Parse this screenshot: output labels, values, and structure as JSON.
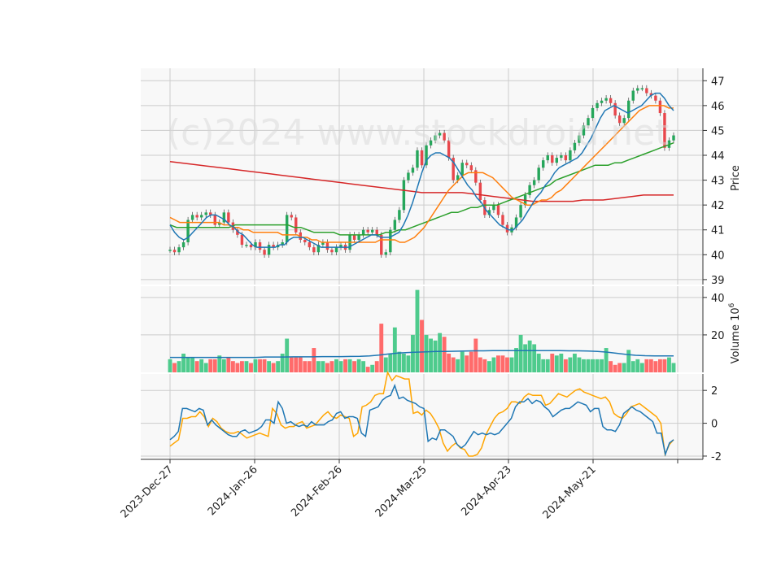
{
  "chart_data": {
    "type": "candlestick",
    "watermark": "(c)2024 www.stockdroid.net",
    "x_tick_labels": [
      "2023-Dec-27",
      "2024-Jan-26",
      "2024-Feb-26",
      "2024-Mar-25",
      "2024-Apr-23",
      "2024-May-21"
    ],
    "colors": {
      "up": "#26a65b",
      "down": "#e8474c",
      "up_volume": "#4ecb8d",
      "down_volume": "#ff6b6b",
      "grid": "#cccccc",
      "panel_bg": "#f8f8f8"
    },
    "price_panel": {
      "ylabel": "Price",
      "ylim": [
        38.8,
        47.5
      ],
      "yticks": [
        39,
        40,
        41,
        42,
        43,
        44,
        45,
        46,
        47
      ],
      "close": [
        40.2,
        40.1,
        40.3,
        40.5,
        41.4,
        41.6,
        41.5,
        41.6,
        41.7,
        41.6,
        41.2,
        41.3,
        41.7,
        41.3,
        41.0,
        40.8,
        40.4,
        40.4,
        40.3,
        40.5,
        40.2,
        40.0,
        40.4,
        40.3,
        40.4,
        40.5,
        41.6,
        41.5,
        40.9,
        40.6,
        40.5,
        40.3,
        40.1,
        40.4,
        40.5,
        40.2,
        40.1,
        40.3,
        40.4,
        40.2,
        40.8,
        40.6,
        40.8,
        41.0,
        40.9,
        41.0,
        40.8,
        40.0,
        40.1,
        41.0,
        41.4,
        41.8,
        43.0,
        43.3,
        43.5,
        44.2,
        43.6,
        44.4,
        44.6,
        44.8,
        44.9,
        44.6,
        43.9,
        43.0,
        43.2,
        43.7,
        43.6,
        43.4,
        42.9,
        42.2,
        41.6,
        41.8,
        42.0,
        41.6,
        41.2,
        40.9,
        41.1,
        41.5,
        42.0,
        42.4,
        42.8,
        43.0,
        43.5,
        43.8,
        44.0,
        43.7,
        43.9,
        44.0,
        43.8,
        44.2,
        44.5,
        44.8,
        45.2,
        45.5,
        45.9,
        46.1,
        46.2,
        46.3,
        46.1,
        45.6,
        45.3,
        45.5,
        46.2,
        46.6,
        46.7,
        46.7,
        46.5,
        46.4,
        46.2,
        45.7,
        44.3,
        44.6,
        44.8
      ],
      "ma_short": [
        41.2,
        40.9,
        40.7,
        40.6,
        40.7,
        40.9,
        41.1,
        41.3,
        41.5,
        41.6,
        41.6,
        41.5,
        41.4,
        41.2,
        41.1,
        40.9,
        40.8,
        40.6,
        40.4,
        40.3,
        40.3,
        40.3,
        40.3,
        40.3,
        40.4,
        40.4,
        40.6,
        40.7,
        40.7,
        40.7,
        40.6,
        40.5,
        40.4,
        40.3,
        40.3,
        40.3,
        40.3,
        40.3,
        40.3,
        40.3,
        40.4,
        40.5,
        40.6,
        40.7,
        40.8,
        40.8,
        40.7,
        40.7,
        40.7,
        40.8,
        40.9,
        41.2,
        41.6,
        42.1,
        42.7,
        43.3,
        43.8,
        44.0,
        44.1,
        44.1,
        44.0,
        43.9,
        43.7,
        43.4,
        43.1,
        42.8,
        42.6,
        42.3,
        42.1,
        41.8,
        41.6,
        41.4,
        41.2,
        41.1,
        41.0,
        41.0,
        41.2,
        41.4,
        41.7,
        42.0,
        42.3,
        42.5,
        42.8,
        43.0,
        43.3,
        43.5,
        43.6,
        43.7,
        43.8,
        43.9,
        44.1,
        44.4,
        44.7,
        45.1,
        45.5,
        45.8,
        45.9,
        46.0,
        45.9,
        45.8,
        45.7,
        45.8,
        45.9,
        46.0,
        46.2,
        46.4,
        46.5,
        46.5,
        46.3,
        46.0,
        45.8
      ],
      "ma_mid": [
        41.5,
        41.4,
        41.3,
        41.3,
        41.3,
        41.3,
        41.3,
        41.3,
        41.3,
        41.3,
        41.3,
        41.2,
        41.2,
        41.1,
        41.1,
        41.0,
        41.0,
        40.9,
        40.9,
        40.9,
        40.9,
        40.9,
        40.9,
        40.8,
        40.8,
        40.8,
        40.8,
        40.7,
        40.7,
        40.6,
        40.6,
        40.5,
        40.5,
        40.5,
        40.5,
        40.5,
        40.5,
        40.5,
        40.5,
        40.5,
        40.5,
        40.5,
        40.5,
        40.6,
        40.6,
        40.6,
        40.6,
        40.5,
        40.5,
        40.6,
        40.7,
        40.9,
        41.1,
        41.4,
        41.7,
        42.0,
        42.3,
        42.6,
        42.8,
        43.0,
        43.2,
        43.3,
        43.3,
        43.3,
        43.3,
        43.2,
        43.1,
        42.9,
        42.7,
        42.5,
        42.3,
        42.2,
        42.1,
        42.0,
        42.0,
        42.1,
        42.2,
        42.2,
        42.3,
        42.5,
        42.6,
        42.8,
        43.0,
        43.2,
        43.4,
        43.6,
        43.8,
        44.0,
        44.2,
        44.4,
        44.6,
        44.8,
        45.0,
        45.2,
        45.4,
        45.6,
        45.8,
        45.9,
        46.0,
        46.0,
        46.0,
        46.0,
        45.9,
        45.9
      ],
      "ma_long": [
        41.2,
        41.1,
        41.1,
        41.1,
        41.1,
        41.1,
        41.1,
        41.1,
        41.1,
        41.1,
        41.2,
        41.2,
        41.2,
        41.2,
        41.2,
        41.2,
        41.2,
        41.2,
        41.2,
        41.1,
        41.1,
        41.0,
        40.9,
        40.9,
        40.9,
        40.9,
        40.8,
        40.8,
        40.8,
        40.8,
        40.8,
        40.8,
        40.8,
        40.9,
        40.9,
        41.0,
        41.0,
        41.1,
        41.2,
        41.3,
        41.4,
        41.5,
        41.6,
        41.7,
        41.7,
        41.8,
        41.9,
        41.9,
        42.0,
        42.0,
        42.0,
        42.1,
        42.2,
        42.3,
        42.4,
        42.5,
        42.6,
        42.7,
        42.8,
        43.0,
        43.1,
        43.2,
        43.3,
        43.4,
        43.5,
        43.6,
        43.6,
        43.6,
        43.7,
        43.7,
        43.8,
        43.9,
        44.0,
        44.1,
        44.2,
        44.3,
        44.4,
        44.5
      ],
      "ma_longest": [
        43.75,
        43.7,
        43.65,
        43.6,
        43.55,
        43.5,
        43.45,
        43.4,
        43.35,
        43.3,
        43.25,
        43.2,
        43.15,
        43.1,
        43.05,
        43.0,
        42.95,
        42.9,
        42.85,
        42.8,
        42.75,
        42.7,
        42.65,
        42.6,
        42.55,
        42.5,
        42.5,
        42.5,
        42.5,
        42.5,
        42.45,
        42.4,
        42.35,
        42.3,
        42.25,
        42.2,
        42.15,
        42.15,
        42.15,
        42.15,
        42.15,
        42.2,
        42.2,
        42.2,
        42.25,
        42.3,
        42.35,
        42.4,
        42.4,
        42.4,
        42.4
      ]
    },
    "volume_panel": {
      "ylabel": "Volume",
      "ylabel_exponent": "6",
      "ylim": [
        0,
        46
      ],
      "yticks": [
        20,
        40
      ],
      "values": [
        7,
        5,
        6,
        10,
        8,
        8,
        6,
        7,
        5,
        7,
        7,
        9,
        7,
        8,
        6,
        5,
        6,
        6,
        5,
        7,
        7,
        7,
        6,
        5,
        6,
        10,
        18,
        8,
        8,
        8,
        6,
        6,
        13,
        6,
        6,
        5,
        6,
        7,
        6,
        7,
        7,
        6,
        7,
        6,
        3,
        4,
        6,
        26,
        8,
        10,
        24,
        11,
        10,
        9,
        20,
        44,
        28,
        20,
        18,
        17,
        21,
        19,
        10,
        8,
        7,
        11,
        9,
        11,
        18,
        8,
        7,
        6,
        8,
        9,
        9,
        8,
        8,
        13,
        20,
        15,
        17,
        15,
        10,
        7,
        7,
        10,
        9,
        10,
        7,
        8,
        10,
        8,
        7,
        7,
        7,
        7,
        7,
        13,
        6,
        4,
        5,
        5,
        12,
        6,
        7,
        5,
        7,
        7,
        6,
        7,
        7,
        8,
        5
      ],
      "ma": [
        8,
        8,
        8,
        8,
        8,
        8,
        8,
        8,
        8,
        8,
        8.2,
        8.2,
        8.2,
        8.3,
        8.3,
        8.3,
        8.4,
        8.4,
        8.4,
        8.5,
        8.6,
        8.8,
        9.2,
        9.8,
        10.3,
        10.6,
        10.8,
        11,
        11.2,
        11.2,
        11.3,
        11.4,
        11.5,
        11.5,
        11.6,
        11.6,
        11.6,
        11.6,
        11.6,
        11.6,
        11.6,
        11.6,
        11.5,
        11.5,
        11.4,
        11.2,
        10.8,
        10.2,
        9.6,
        9.1,
        8.9,
        8.8,
        8.8,
        8.8
      ]
    },
    "oscillator_panel": {
      "ylim": [
        -2.2,
        3.0
      ],
      "yticks": [
        -2,
        0,
        2
      ],
      "line_a": [
        -1.0,
        -0.8,
        -0.5,
        0.9,
        0.9,
        0.8,
        0.7,
        0.9,
        0.8,
        -0.1,
        0.2,
        -0.1,
        -0.3,
        -0.5,
        -0.7,
        -0.8,
        -0.8,
        -0.5,
        -0.4,
        -0.6,
        -0.5,
        -0.4,
        -0.2,
        0.2,
        0.2,
        0.0,
        1.3,
        0.9,
        0.0,
        0.1,
        -0.1,
        -0.2,
        -0.1,
        -0.2,
        0.1,
        -0.1,
        -0.1,
        -0.1,
        0.1,
        0.2,
        0.6,
        0.7,
        0.3,
        0.4,
        0.4,
        0.3,
        -0.6,
        -0.8,
        0.8,
        0.9,
        1.0,
        1.4,
        1.6,
        1.7,
        2.3,
        1.5,
        1.6,
        1.4,
        1.3,
        1.2,
        1.0,
        0.9,
        -1.1,
        -0.9,
        -1.0,
        -0.4,
        -0.4,
        -0.6,
        -0.8,
        -1.3,
        -1.5,
        -1.3,
        -0.9,
        -0.5,
        -0.7,
        -0.6,
        -0.7,
        -0.6,
        -0.7,
        -0.6,
        -0.3,
        0.0,
        0.3,
        1.0,
        1.3,
        1.3,
        1.5,
        1.2,
        1.4,
        1.3,
        1.0,
        0.8,
        0.4,
        0.6,
        0.8,
        0.9,
        0.9,
        1.1,
        1.3,
        1.2,
        1.1,
        0.7,
        0.9,
        0.9,
        -0.2,
        -0.4,
        -0.4,
        -0.5,
        -0.1,
        0.6,
        0.8,
        1.0,
        0.8,
        0.7,
        0.5,
        0.3,
        0.1,
        -0.6,
        -0.6,
        -1.9,
        -1.2,
        -1.0
      ],
      "line_b": [
        -1.4,
        -1.2,
        -1.0,
        0.3,
        0.3,
        0.4,
        0.4,
        0.7,
        0.4,
        -0.2,
        0.3,
        0.1,
        -0.3,
        -0.5,
        -0.6,
        -0.6,
        -0.5,
        -0.7,
        -0.9,
        -0.8,
        -0.7,
        -0.6,
        -0.7,
        -0.8,
        0.9,
        0.6,
        -0.1,
        -0.3,
        -0.2,
        -0.2,
        0.0,
        0.1,
        -0.3,
        -0.2,
        -0.1,
        0.2,
        0.5,
        0.7,
        0.4,
        0.3,
        0.5,
        0.4,
        0.3,
        -0.8,
        -0.6,
        1.0,
        1.1,
        1.3,
        1.7,
        1.8,
        1.8,
        3.1,
        2.6,
        2.9,
        2.8,
        2.7,
        2.7,
        0.6,
        0.7,
        0.5,
        0.8,
        0.6,
        0.2,
        -0.3,
        -1.2,
        -1.7,
        -1.4,
        -1.2,
        -1.5,
        -1.6,
        -2.0,
        -2.0,
        -1.9,
        -1.5,
        -0.7,
        -0.2,
        0.3,
        0.6,
        0.7,
        0.9,
        1.3,
        1.3,
        1.2,
        1.6,
        1.8,
        1.7,
        1.7,
        1.7,
        1.1,
        1.2,
        1.5,
        1.8,
        1.7,
        1.6,
        1.8,
        2.0,
        2.1,
        1.9,
        1.8,
        1.7,
        1.6,
        1.5,
        1.6,
        1.3,
        0.6,
        0.4,
        0.3,
        0.6,
        1.0,
        1.1,
        1.2,
        1.0,
        0.8,
        0.6,
        0.4,
        0.0,
        -1.9,
        -1.3,
        -1.0
      ]
    }
  }
}
